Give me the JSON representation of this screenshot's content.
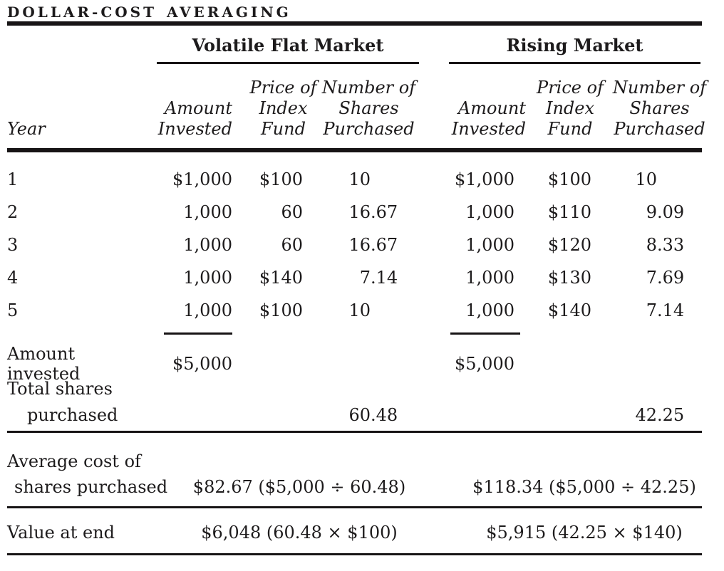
{
  "title": "DOLLAR-COST AVERAGING",
  "groups": {
    "volatile": "Volatile Flat Market",
    "rising": "Rising Market"
  },
  "columns": {
    "year": "Year",
    "amount": [
      "Amount",
      "Invested"
    ],
    "price": [
      "Price of",
      "Index",
      "Fund"
    ],
    "shares": [
      "Number of",
      "Shares",
      "Purchased"
    ]
  },
  "rows": [
    {
      "year": "1",
      "vf_amount": "$1,000",
      "vf_price": "$100",
      "vf_shares": "10",
      "rm_amount": "$1,000",
      "rm_price": "$100",
      "rm_shares": "10"
    },
    {
      "year": "2",
      "vf_amount": "1,000",
      "vf_price": "60",
      "vf_shares": "16.67",
      "rm_amount": "1,000",
      "rm_price": "$110",
      "rm_shares": "9.09"
    },
    {
      "year": "3",
      "vf_amount": "1,000",
      "vf_price": "60",
      "vf_shares": "16.67",
      "rm_amount": "1,000",
      "rm_price": "$120",
      "rm_shares": "8.33"
    },
    {
      "year": "4",
      "vf_amount": "1,000",
      "vf_price": "$140",
      "vf_shares": "7.14",
      "rm_amount": "1,000",
      "rm_price": "$130",
      "rm_shares": "7.69"
    },
    {
      "year": "5",
      "vf_amount": "1,000",
      "vf_price": "$100",
      "vf_shares": "10",
      "rm_amount": "1,000",
      "rm_price": "$140",
      "rm_shares": "7.14"
    }
  ],
  "summary": {
    "amount_invested": {
      "label": "Amount invested",
      "vf": "$5,000",
      "rm": "$5,000"
    },
    "total_shares": {
      "label_line1": "Total shares",
      "label_line2": "purchased",
      "vf": "60.48",
      "rm": "42.25"
    },
    "average_cost": {
      "label_line1": "Average cost of",
      "label_line2": "shares purchased",
      "vf": "$82.67 ($5,000 ÷ 60.48)",
      "rm": "$118.34 ($5,000 ÷ 42.25)"
    },
    "value_at_end": {
      "label": "Value at end",
      "vf": "$6,048 (60.48 × $100)",
      "rm": "$5,915 (42.25 × $140)"
    }
  },
  "colors": {
    "text": "#1d1b1c",
    "rule": "#171415",
    "background": "#ffffff"
  }
}
